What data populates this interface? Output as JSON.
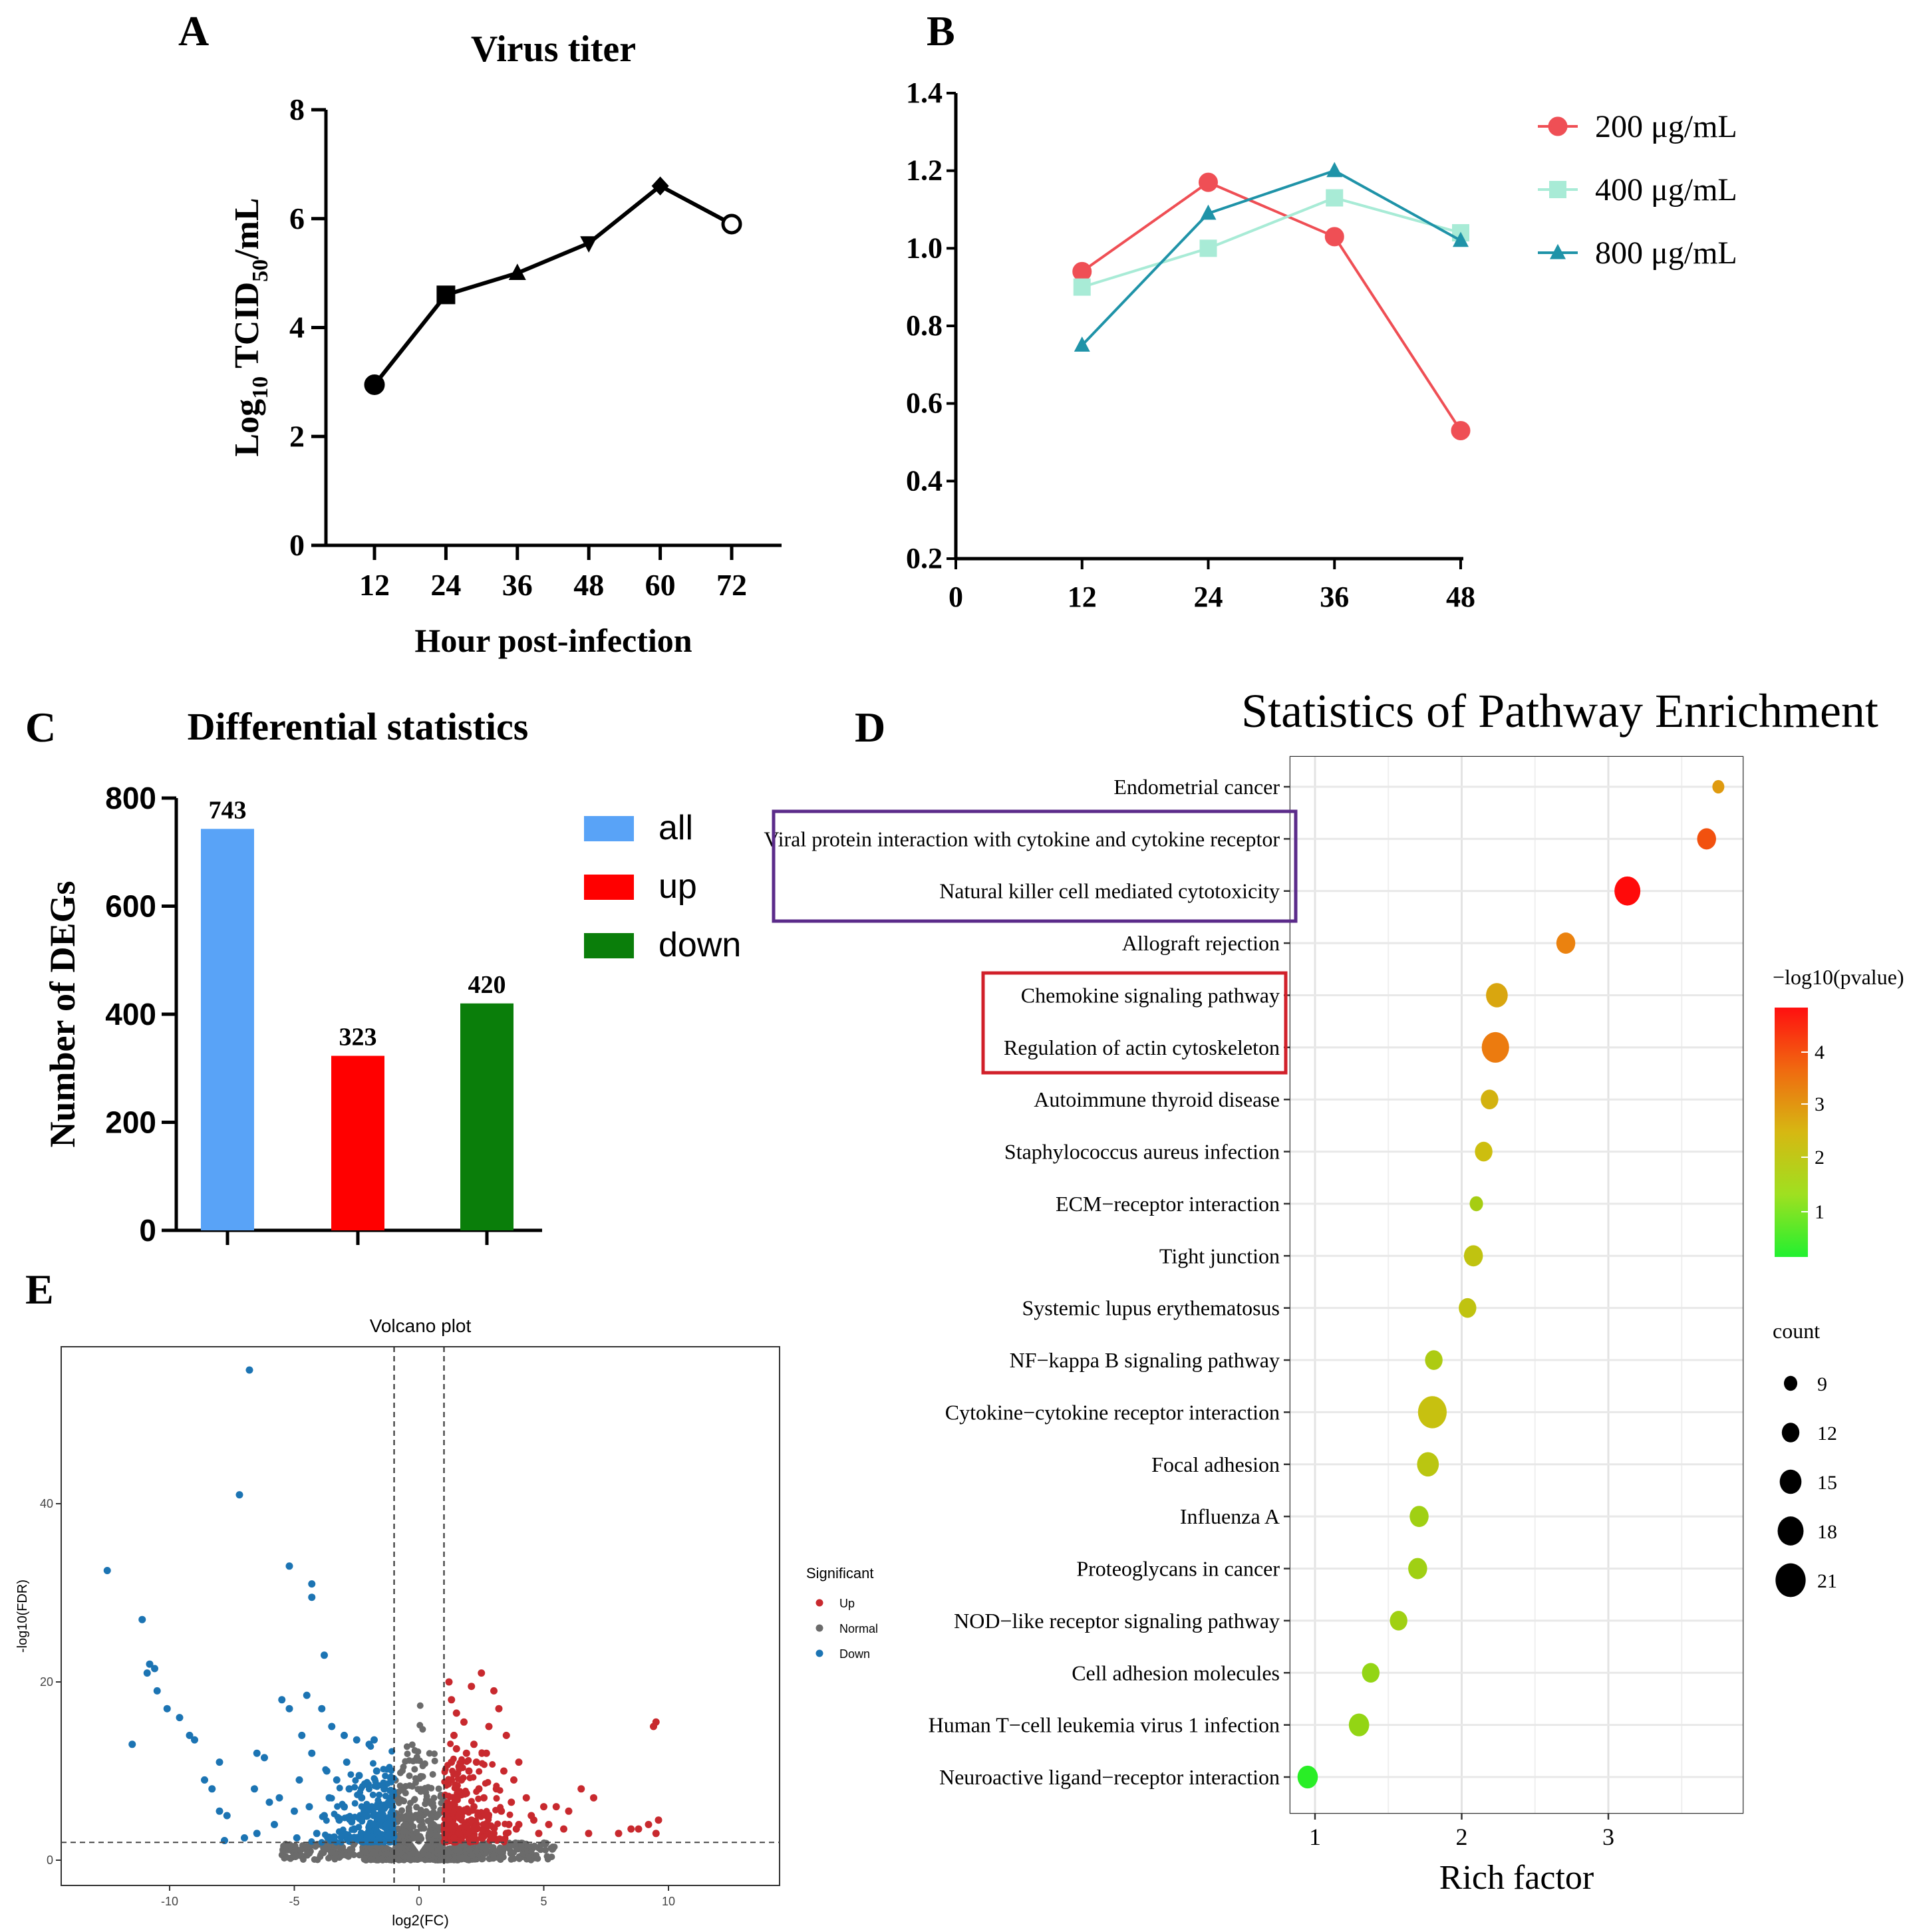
{
  "figure": {
    "panel_labels": [
      "A",
      "B",
      "C",
      "D",
      "E"
    ]
  },
  "chart_data": [
    {
      "panel": "A",
      "type": "line",
      "title": "Virus titer",
      "xlabel": "Hour post-infection",
      "ylabel_main": "Log",
      "ylabel_sub1": "10",
      "ylabel_mid": " TCID",
      "ylabel_sub2": "50",
      "ylabel_end": "/mL",
      "x": [
        12,
        24,
        36,
        48,
        60,
        72
      ],
      "x_ticks": [
        "12",
        "24",
        "36",
        "48",
        "60",
        "72"
      ],
      "y_ticks": [
        "0",
        "2",
        "4",
        "6",
        "8"
      ],
      "ylim": [
        0,
        8
      ],
      "series": [
        {
          "values": [
            2.95,
            4.6,
            5.0,
            5.55,
            6.6,
            5.9
          ],
          "markers": [
            "circle",
            "square",
            "triangle-up",
            "triangle-down",
            "diamond",
            "open-circle"
          ],
          "color": "#000000"
        }
      ]
    },
    {
      "panel": "B",
      "type": "line",
      "title": "",
      "xlabel": "",
      "ylabel": "",
      "x_ticks": [
        "0",
        "12",
        "24",
        "36",
        "48"
      ],
      "y_ticks": [
        "0.2",
        "0.4",
        "0.6",
        "0.8",
        "1.0",
        "1.2",
        "1.4"
      ],
      "xlim": [
        0,
        48
      ],
      "ylim": [
        0.2,
        1.4
      ],
      "x": [
        12,
        24,
        36,
        48
      ],
      "legend_position": "right",
      "series": [
        {
          "name": "200 μg/mL",
          "values": [
            0.94,
            1.17,
            1.03,
            0.53
          ],
          "color": "#ef4f55",
          "marker": "circle"
        },
        {
          "name": "400 μg/mL",
          "values": [
            0.9,
            1.0,
            1.13,
            1.04
          ],
          "color": "#a8ebd6",
          "marker": "square"
        },
        {
          "name": "800 μg/mL",
          "values": [
            0.75,
            1.09,
            1.2,
            1.02
          ],
          "color": "#1f93a8",
          "marker": "triangle"
        }
      ]
    },
    {
      "panel": "C",
      "type": "bar",
      "title": "Differential statistics",
      "ylabel": "Number of DEGs",
      "categories": [
        "all",
        "up",
        "down"
      ],
      "values": [
        743,
        323,
        420
      ],
      "value_labels": [
        "743",
        "323",
        "420"
      ],
      "colors": [
        "#59a3f7",
        "#ff0000",
        "#0a7e0a"
      ],
      "y_ticks": [
        "0",
        "200",
        "400",
        "600",
        "800"
      ],
      "ylim": [
        0,
        800
      ],
      "legend_position": "right"
    },
    {
      "panel": "D",
      "type": "scatter",
      "title": "Statistics of Pathway Enrichment",
      "xlabel": "Rich factor",
      "x_ticks": [
        "1",
        "2",
        "3"
      ],
      "xlim": [
        0.9,
        3.85
      ],
      "color_legend_title": "−log10(pvalue)",
      "color_ticks": [
        "4",
        "3",
        "2",
        "1"
      ],
      "size_legend_title": "count",
      "size_ticks": [
        "9",
        "12",
        "15",
        "18",
        "21"
      ],
      "highlight_purple": [
        "Viral protein interaction with cytokine and cytokine receptor",
        "Natural killer cell mediated cytotoxicity"
      ],
      "highlight_red": [
        "Chemokine signaling pathway",
        "Regulation of actin cytoskeleton"
      ],
      "pathways": [
        {
          "name": "Endometrial cancer",
          "rich_factor": 3.75,
          "neglog10p": 2.6,
          "count": 8
        },
        {
          "name": "Viral protein interaction with cytokine and cytokine receptor",
          "rich_factor": 3.67,
          "neglog10p": 3.7,
          "count": 13
        },
        {
          "name": "Natural killer cell mediated cytotoxicity",
          "rich_factor": 3.13,
          "neglog10p": 4.8,
          "count": 18
        },
        {
          "name": "Allograft rejection",
          "rich_factor": 2.71,
          "neglog10p": 3.0,
          "count": 13
        },
        {
          "name": "Chemokine signaling pathway",
          "rich_factor": 2.24,
          "neglog10p": 2.4,
          "count": 15
        },
        {
          "name": "Regulation of actin cytoskeleton",
          "rich_factor": 2.23,
          "neglog10p": 3.1,
          "count": 19
        },
        {
          "name": "Autoimmune thyroid disease",
          "rich_factor": 2.19,
          "neglog10p": 2.2,
          "count": 12
        },
        {
          "name": "Staphylococcus aureus infection",
          "rich_factor": 2.15,
          "neglog10p": 2.0,
          "count": 12
        },
        {
          "name": "ECM−receptor interaction",
          "rich_factor": 2.1,
          "neglog10p": 1.4,
          "count": 9
        },
        {
          "name": "Tight junction",
          "rich_factor": 2.08,
          "neglog10p": 1.8,
          "count": 13
        },
        {
          "name": "Systemic lupus erythematosus",
          "rich_factor": 2.04,
          "neglog10p": 1.8,
          "count": 12
        },
        {
          "name": "NF−kappa B signaling pathway",
          "rich_factor": 1.81,
          "neglog10p": 1.5,
          "count": 12
        },
        {
          "name": "Cytokine−cytokine receptor interaction",
          "rich_factor": 1.8,
          "neglog10p": 1.9,
          "count": 20
        },
        {
          "name": "Focal adhesion",
          "rich_factor": 1.77,
          "neglog10p": 1.7,
          "count": 15
        },
        {
          "name": "Influenza A",
          "rich_factor": 1.71,
          "neglog10p": 1.3,
          "count": 13
        },
        {
          "name": "Proteoglycans in cancer",
          "rich_factor": 1.7,
          "neglog10p": 1.3,
          "count": 13
        },
        {
          "name": "NOD−like receptor signaling pathway",
          "rich_factor": 1.57,
          "neglog10p": 1.3,
          "count": 12
        },
        {
          "name": "Cell adhesion molecules",
          "rich_factor": 1.38,
          "neglog10p": 1.1,
          "count": 12
        },
        {
          "name": "Human T−cell leukemia virus 1 infection",
          "rich_factor": 1.3,
          "neglog10p": 1.1,
          "count": 14
        },
        {
          "name": "Neuroactive ligand−receptor interaction",
          "rich_factor": 0.95,
          "neglog10p": 0.1,
          "count": 14
        }
      ]
    },
    {
      "panel": "E",
      "type": "scatter",
      "title": "Volcano plot",
      "xlabel": "log2(FC)",
      "ylabel": "-log10(FDR)",
      "x_ticks": [
        "-10",
        "-5",
        "0",
        "5",
        "10"
      ],
      "y_ticks": [
        "0",
        "20",
        "40"
      ],
      "xlim": [
        -14.5,
        14
      ],
      "ylim": [
        -2,
        58
      ],
      "fc_thresholds": [
        -1,
        1
      ],
      "fdr_threshold": 2,
      "legend_title": "Significant",
      "legend_entries": [
        "Up",
        "Normal",
        "Down"
      ],
      "colors": {
        "Up": "#c8292e",
        "Normal": "#6b6b6b",
        "Down": "#1c74b3"
      },
      "up_points": [
        [
          1.3,
          18
        ],
        [
          1.2,
          20
        ],
        [
          2.1,
          19.5
        ],
        [
          2.5,
          21
        ],
        [
          3,
          19
        ],
        [
          3.2,
          17
        ],
        [
          1.5,
          16.5
        ],
        [
          1.8,
          15.5
        ],
        [
          2.8,
          15
        ],
        [
          3.5,
          14
        ],
        [
          1.4,
          14
        ],
        [
          2.2,
          13
        ],
        [
          4,
          11
        ],
        [
          3.8,
          9
        ],
        [
          3.1,
          8
        ],
        [
          2.6,
          7
        ],
        [
          6.5,
          8
        ],
        [
          7,
          7
        ],
        [
          5.5,
          6
        ],
        [
          6,
          5.5
        ],
        [
          5,
          6
        ],
        [
          4.6,
          4.5
        ],
        [
          9.5,
          15.5
        ],
        [
          9.4,
          15
        ],
        [
          8.5,
          3.5
        ],
        [
          8.8,
          3.5
        ],
        [
          9.2,
          4
        ],
        [
          9.6,
          4.5
        ],
        [
          9.5,
          3
        ],
        [
          8,
          3
        ],
        [
          4,
          4
        ],
        [
          3.5,
          3
        ],
        [
          2,
          3
        ],
        [
          2.5,
          2.5
        ],
        [
          1.6,
          3
        ],
        [
          1.3,
          4
        ],
        [
          1.2,
          6
        ],
        [
          1.5,
          7
        ],
        [
          1.7,
          9
        ],
        [
          2,
          10
        ],
        [
          2.3,
          11
        ],
        [
          1.9,
          12
        ],
        [
          1.6,
          10.5
        ],
        [
          1.3,
          9
        ],
        [
          1.8,
          5.5
        ],
        [
          2.1,
          4.5
        ],
        [
          2.7,
          5
        ],
        [
          3.3,
          5.5
        ],
        [
          3.7,
          6.5
        ],
        [
          4.3,
          7
        ],
        [
          4.5,
          5
        ],
        [
          5.2,
          4
        ],
        [
          5.8,
          3.5
        ],
        [
          3,
          3
        ],
        [
          1.4,
          2.5
        ],
        [
          2.9,
          2.6
        ],
        [
          3.6,
          4
        ],
        [
          2.4,
          8
        ],
        [
          1.9,
          7.5
        ],
        [
          1.6,
          5
        ],
        [
          1.2,
          3.5
        ],
        [
          2.2,
          6
        ],
        [
          1.3,
          11
        ],
        [
          1.5,
          12.5
        ],
        [
          3.4,
          10
        ],
        [
          2.7,
          12
        ],
        [
          3.9,
          3.5
        ],
        [
          4.8,
          3
        ],
        [
          6.8,
          3
        ],
        [
          2.2,
          2.6
        ]
      ],
      "down_points": [
        [
          -6.8,
          55
        ],
        [
          -7.2,
          41
        ],
        [
          -12.5,
          32.5
        ],
        [
          -11.1,
          27
        ],
        [
          -10.8,
          22
        ],
        [
          -10.6,
          21.5
        ],
        [
          -10.9,
          21
        ],
        [
          -5.2,
          33
        ],
        [
          -4.3,
          31
        ],
        [
          -4.3,
          29.5
        ],
        [
          -3.8,
          23
        ],
        [
          -10.5,
          19
        ],
        [
          -10.1,
          17
        ],
        [
          -9.6,
          16
        ],
        [
          -9.2,
          14
        ],
        [
          -9,
          13.5
        ],
        [
          -11.5,
          13
        ],
        [
          -8,
          11
        ],
        [
          -6.5,
          12
        ],
        [
          -6.2,
          11.5
        ],
        [
          -8.6,
          9
        ],
        [
          -8.3,
          8
        ],
        [
          -6.6,
          8
        ],
        [
          -7.7,
          5
        ],
        [
          -8,
          5.5
        ],
        [
          -5.5,
          18
        ],
        [
          -5.2,
          17
        ],
        [
          -4.5,
          18.5
        ],
        [
          -3.9,
          17
        ],
        [
          -3.5,
          15
        ],
        [
          -3,
          14
        ],
        [
          -2.5,
          13.5
        ],
        [
          -2,
          13
        ],
        [
          -1.8,
          13.5
        ],
        [
          -4.7,
          14
        ],
        [
          -4.3,
          12
        ],
        [
          -3.7,
          10
        ],
        [
          -3.3,
          9
        ],
        [
          -2.8,
          8
        ],
        [
          -2.3,
          7
        ],
        [
          -1.9,
          6
        ],
        [
          -1.5,
          5
        ],
        [
          -1.3,
          4
        ],
        [
          -1.2,
          3
        ],
        [
          -2.6,
          3.5
        ],
        [
          -3.2,
          4.5
        ],
        [
          -3.8,
          5
        ],
        [
          -4.4,
          6
        ],
        [
          -5,
          5.5
        ],
        [
          -5.8,
          4
        ],
        [
          -6.5,
          3
        ],
        [
          -7,
          2.5
        ],
        [
          -7.8,
          2.2
        ],
        [
          -4.9,
          2.5
        ],
        [
          -4.1,
          3
        ],
        [
          -3.4,
          2.6
        ],
        [
          -2.1,
          2.4
        ],
        [
          -1.6,
          2.5
        ],
        [
          -2.4,
          9.5
        ],
        [
          -2.9,
          11
        ],
        [
          -3.6,
          7
        ],
        [
          -4.8,
          9
        ],
        [
          -5.6,
          7
        ],
        [
          -1.4,
          8
        ],
        [
          -1.7,
          10
        ],
        [
          -2.2,
          5.5
        ],
        [
          -1.2,
          6.5
        ],
        [
          -3,
          6
        ],
        [
          -6,
          6.5
        ],
        [
          -2.7,
          4.3
        ]
      ]
    }
  ]
}
